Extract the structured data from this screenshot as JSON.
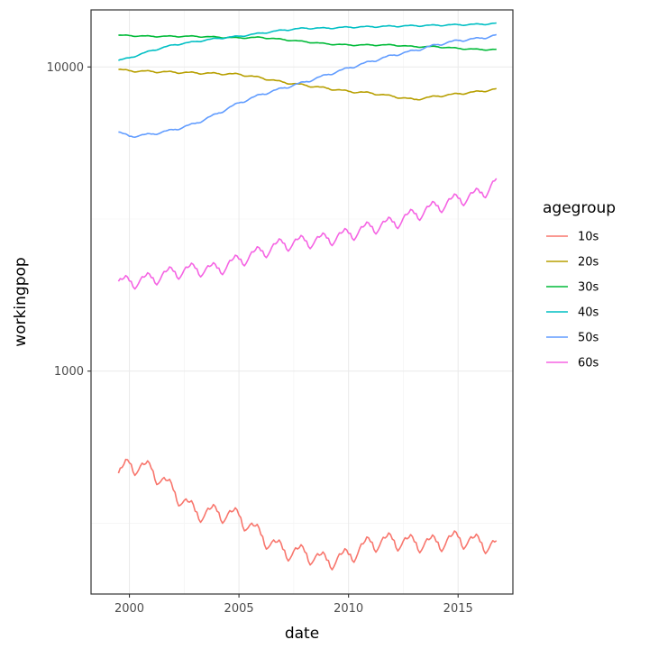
{
  "chart_data": {
    "type": "line",
    "xlabel": "date",
    "ylabel": "workingpop",
    "y_scale": "log10",
    "x_range": [
      "1999-06-01",
      "2016-10-01"
    ],
    "xlim": [
      1998.25,
      2017.5
    ],
    "ylim": [
      185,
      15400
    ],
    "x_ticks": [
      {
        "value": 2000,
        "label": "2000"
      },
      {
        "value": 2005,
        "label": "2005"
      },
      {
        "value": 2010,
        "label": "2010"
      },
      {
        "value": 2015,
        "label": "2015"
      }
    ],
    "y_ticks": [
      {
        "value": 1000,
        "label": "1000"
      },
      {
        "value": 10000,
        "label": "10000"
      }
    ],
    "grid": true,
    "legend": {
      "title": "agegroup",
      "position": "right"
    },
    "series": [
      {
        "name": "10s",
        "color": "#F8766D",
        "annual_points": [
          [
            1999.5,
            455
          ],
          [
            2000,
            490
          ],
          [
            2001,
            470
          ],
          [
            2002,
            400
          ],
          [
            2003,
            340
          ],
          [
            2004,
            340
          ],
          [
            2005,
            330
          ],
          [
            2006,
            285
          ],
          [
            2007,
            255
          ],
          [
            2008,
            250
          ],
          [
            2009,
            235
          ],
          [
            2010,
            245
          ],
          [
            2011,
            270
          ],
          [
            2012,
            275
          ],
          [
            2013,
            270
          ],
          [
            2014,
            270
          ],
          [
            2015,
            280
          ],
          [
            2016,
            270
          ],
          [
            2016.75,
            265
          ]
        ],
        "seasonal_amp": 0.075
      },
      {
        "name": "20s",
        "color": "#B79F00",
        "annual_points": [
          [
            1999.5,
            9800
          ],
          [
            2000,
            9700
          ],
          [
            2002,
            9600
          ],
          [
            2004,
            9500
          ],
          [
            2005,
            9450
          ],
          [
            2006,
            9200
          ],
          [
            2007,
            8900
          ],
          [
            2008,
            8700
          ],
          [
            2009,
            8500
          ],
          [
            2010,
            8300
          ],
          [
            2011,
            8200
          ],
          [
            2012,
            8000
          ],
          [
            2013,
            7800
          ],
          [
            2014,
            8000
          ],
          [
            2015,
            8150
          ],
          [
            2016,
            8300
          ],
          [
            2016.75,
            8450
          ]
        ],
        "seasonal_amp": 0.008
      },
      {
        "name": "30s",
        "color": "#00BA38",
        "annual_points": [
          [
            1999.5,
            12700
          ],
          [
            2001,
            12600
          ],
          [
            2003,
            12600
          ],
          [
            2005,
            12450
          ],
          [
            2006,
            12500
          ],
          [
            2007,
            12300
          ],
          [
            2008,
            12100
          ],
          [
            2009,
            11900
          ],
          [
            2010,
            11800
          ],
          [
            2011,
            11800
          ],
          [
            2012,
            11800
          ],
          [
            2013,
            11650
          ],
          [
            2014,
            11650
          ],
          [
            2015,
            11500
          ],
          [
            2016,
            11400
          ],
          [
            2016.75,
            11400
          ]
        ],
        "seasonal_amp": 0.005
      },
      {
        "name": "40s",
        "color": "#00BFC4",
        "annual_points": [
          [
            1999.5,
            10500
          ],
          [
            2000,
            10700
          ],
          [
            2001,
            11300
          ],
          [
            2002,
            11800
          ],
          [
            2003,
            12100
          ],
          [
            2004,
            12400
          ],
          [
            2005,
            12600
          ],
          [
            2006,
            12900
          ],
          [
            2007,
            13200
          ],
          [
            2008,
            13400
          ],
          [
            2009,
            13400
          ],
          [
            2010,
            13500
          ],
          [
            2011,
            13550
          ],
          [
            2012,
            13600
          ],
          [
            2013,
            13650
          ],
          [
            2014,
            13700
          ],
          [
            2015,
            13750
          ],
          [
            2016,
            13800
          ],
          [
            2016.75,
            13900
          ]
        ],
        "seasonal_amp": 0.006
      },
      {
        "name": "50s",
        "color": "#619CFF",
        "annual_points": [
          [
            1999.5,
            6100
          ],
          [
            2000,
            5900
          ],
          [
            2001,
            6000
          ],
          [
            2002,
            6200
          ],
          [
            2003,
            6500
          ],
          [
            2004,
            7000
          ],
          [
            2005,
            7600
          ],
          [
            2006,
            8100
          ],
          [
            2007,
            8500
          ],
          [
            2008,
            8900
          ],
          [
            2009,
            9400
          ],
          [
            2010,
            9900
          ],
          [
            2011,
            10400
          ],
          [
            2012,
            10900
          ],
          [
            2013,
            11300
          ],
          [
            2014,
            11800
          ],
          [
            2015,
            12200
          ],
          [
            2016,
            12400
          ],
          [
            2016.75,
            12700
          ]
        ],
        "seasonal_amp": 0.01
      },
      {
        "name": "60s",
        "color": "#F564E3",
        "annual_points": [
          [
            1999.5,
            1950
          ],
          [
            2000,
            1950
          ],
          [
            2001,
            2000
          ],
          [
            2002,
            2100
          ],
          [
            2003,
            2150
          ],
          [
            2004,
            2150
          ],
          [
            2005,
            2300
          ],
          [
            2006,
            2450
          ],
          [
            2007,
            2600
          ],
          [
            2008,
            2650
          ],
          [
            2009,
            2700
          ],
          [
            2010,
            2800
          ],
          [
            2011,
            2950
          ],
          [
            2012,
            3050
          ],
          [
            2013,
            3250
          ],
          [
            2014,
            3450
          ],
          [
            2015,
            3650
          ],
          [
            2016,
            3800
          ],
          [
            2016.75,
            4150
          ]
        ],
        "seasonal_amp": 0.06
      }
    ]
  }
}
